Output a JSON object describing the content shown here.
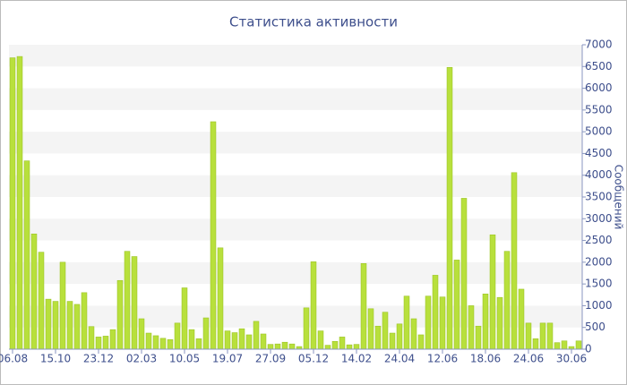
{
  "chart_data": {
    "type": "bar",
    "title": "Статистика активности",
    "y_label": "Сообщений",
    "categories": [
      "06.08",
      null,
      null,
      null,
      null,
      null,
      "15.10",
      null,
      null,
      null,
      null,
      null,
      "23.12",
      null,
      null,
      null,
      null,
      null,
      "02.03",
      null,
      null,
      null,
      null,
      null,
      "10.05",
      null,
      null,
      null,
      null,
      null,
      "19.07",
      null,
      null,
      null,
      null,
      null,
      "27.09",
      null,
      null,
      null,
      null,
      null,
      "05.12",
      null,
      null,
      null,
      null,
      null,
      "14.02",
      null,
      null,
      null,
      null,
      null,
      "24.04",
      null,
      null,
      null,
      null,
      null,
      "12.06",
      null,
      null,
      null,
      null,
      null,
      "18.06",
      null,
      null,
      null,
      null,
      null,
      "24.06",
      null,
      null,
      null,
      null,
      null,
      "30.06",
      null
    ],
    "values": [
      6700,
      6730,
      4330,
      2650,
      2230,
      1150,
      1100,
      2000,
      1100,
      1030,
      1300,
      520,
      280,
      300,
      450,
      1580,
      2250,
      2130,
      700,
      370,
      310,
      250,
      220,
      600,
      1410,
      450,
      240,
      720,
      5230,
      2330,
      420,
      380,
      470,
      330,
      640,
      350,
      110,
      120,
      160,
      120,
      60,
      950,
      2010,
      420,
      90,
      180,
      280,
      100,
      110,
      1970,
      930,
      530,
      850,
      370,
      580,
      1220,
      700,
      330,
      1220,
      1700,
      1200,
      6480,
      2050,
      3470,
      1000,
      530,
      1270,
      2630,
      1190,
      2250,
      4060,
      1380,
      600,
      240,
      600,
      600,
      150,
      190,
      60,
      190
    ],
    "color": "#b8e03c",
    "ylim": [
      0,
      7000
    ],
    "yticks": [
      0,
      500,
      1000,
      1500,
      2000,
      2500,
      3000,
      3500,
      4000,
      4500,
      5000,
      5500,
      6000,
      6500,
      7000
    ],
    "banded_grid": true
  }
}
